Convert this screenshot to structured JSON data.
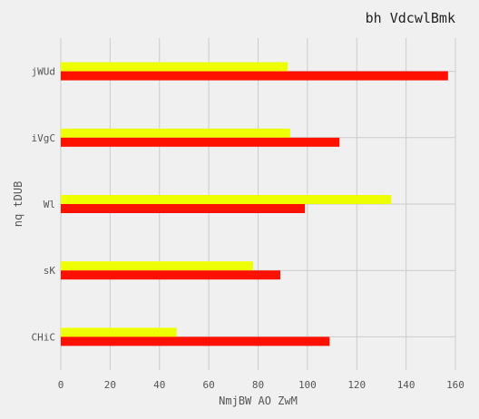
{
  "chart_data": {
    "type": "bar",
    "orientation": "horizontal",
    "title": "bh VdcwlBmk",
    "xlabel": "NmjBW AO ZwM",
    "ylabel": "nq tDUB",
    "xlim": [
      0,
      160
    ],
    "xticks": [
      "0",
      "20",
      "40",
      "60",
      "80",
      "100",
      "120",
      "140",
      "160"
    ],
    "categories": [
      "jWUd",
      "iVgC",
      "Wl",
      "sK",
      "CHiC"
    ],
    "grid": true,
    "series": [
      {
        "color": "#eeff00",
        "values": [
          92,
          93,
          134,
          78,
          47
        ]
      },
      {
        "color": "#ff1100",
        "values": [
          157,
          113,
          99,
          89,
          109
        ]
      }
    ]
  }
}
